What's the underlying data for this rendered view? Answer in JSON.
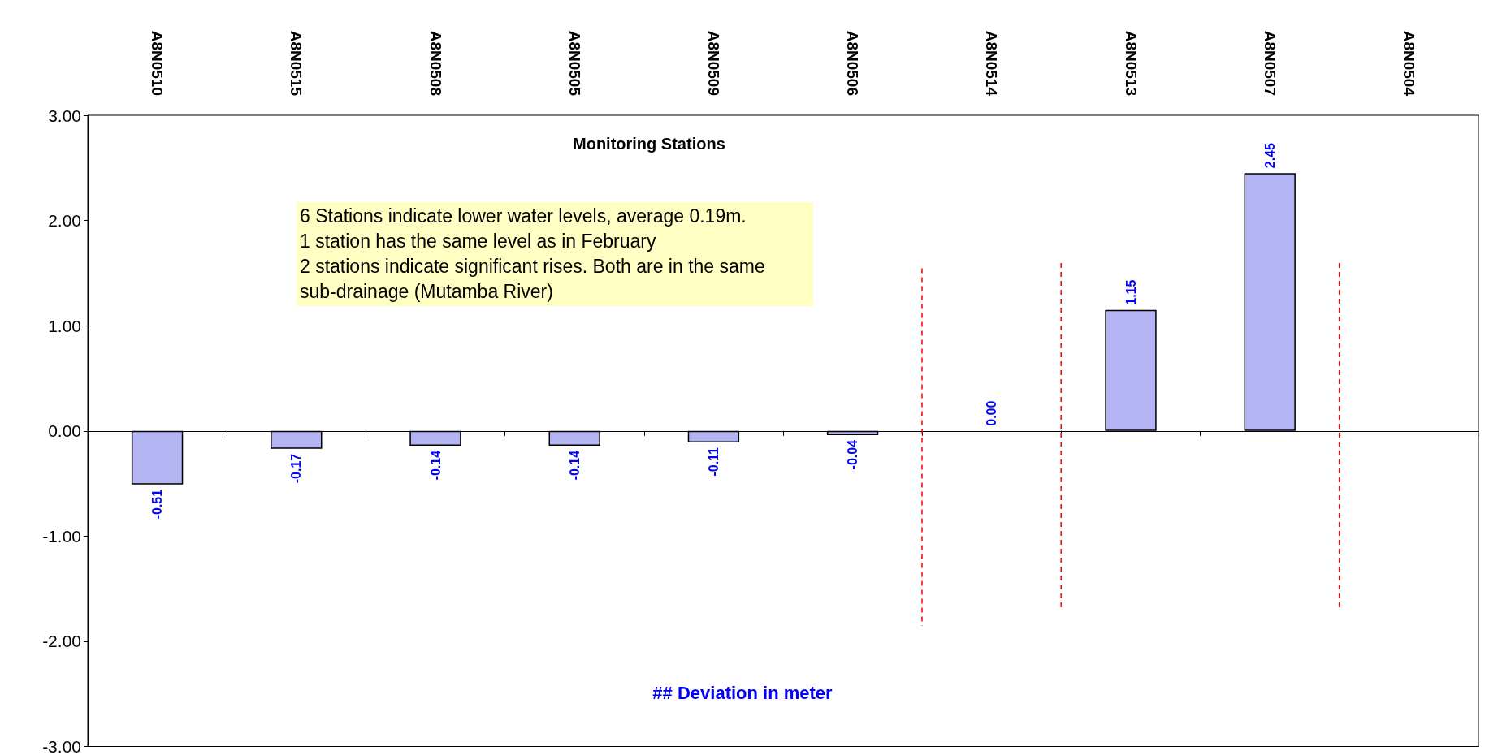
{
  "chart_data": {
    "type": "bar",
    "title": "Monitoring Stations",
    "categories": [
      "A8N0510",
      "A8N0515",
      "A8N0508",
      "A8N0505",
      "A8N0509",
      "A8N0506",
      "A8N0514",
      "A8N0513",
      "A8N0507",
      "A8N0504"
    ],
    "values": [
      -0.51,
      -0.17,
      -0.14,
      -0.14,
      -0.11,
      -0.04,
      0,
      1.15,
      2.45,
      null
    ],
    "value_labels": [
      "-0.51",
      "-0.17",
      "-0.14",
      "-0.14",
      "-0.11",
      "-0.04",
      "0.00",
      "1.15",
      "2.45",
      null
    ],
    "color": "#b4b4f2",
    "ylim": [
      -3,
      3
    ],
    "yticks": [
      {
        "value": -3,
        "label": "-3.00"
      },
      {
        "value": -2,
        "label": "-2.00"
      },
      {
        "value": -1,
        "label": "-1.00"
      },
      {
        "value": 0,
        "label": "0.00"
      },
      {
        "value": 1,
        "label": "1.00"
      },
      {
        "value": 2,
        "label": "2.00"
      },
      {
        "value": 3,
        "label": "3.00"
      }
    ],
    "annotations": [
      "6 Stations indicate lower water levels, average 0.19m.\n1 station has the same level as in February\n2 stations indicate significant rises. Both are in the same sub-drainage (Mutamba River)",
      "## Deviation in meter"
    ]
  }
}
